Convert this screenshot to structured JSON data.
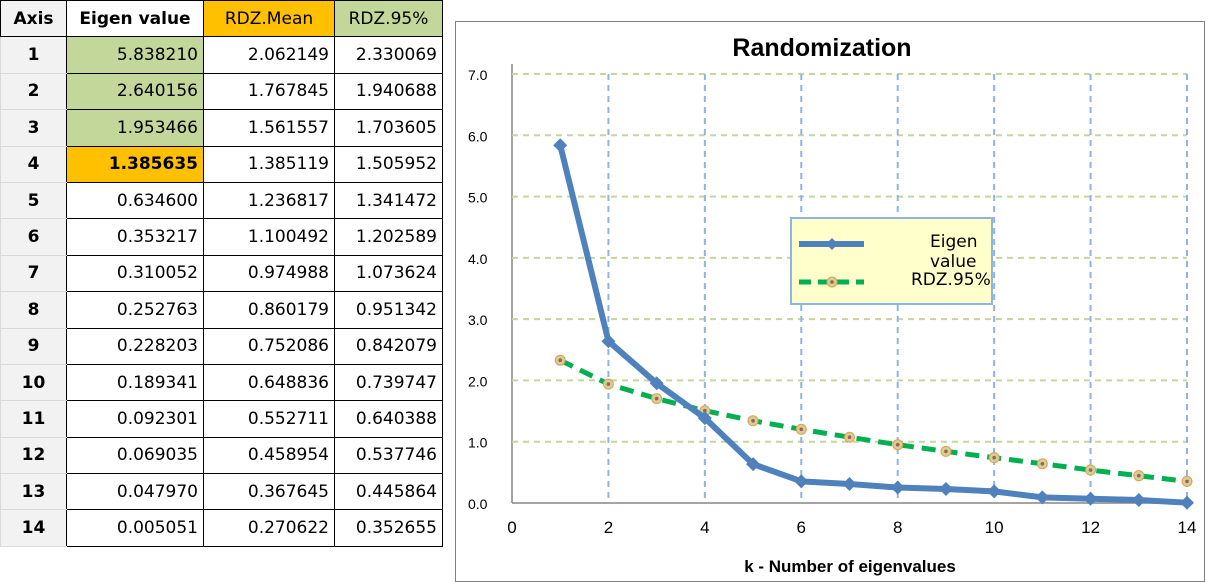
{
  "table": {
    "headers": [
      "Axis",
      "Eigen value",
      "RDZ.Mean",
      "RDZ.95%"
    ],
    "rows": [
      [
        "1",
        "5.838210",
        "2.062149",
        "2.330069"
      ],
      [
        "2",
        "2.640156",
        "1.767845",
        "1.940688"
      ],
      [
        "3",
        "1.953466",
        "1.561557",
        "1.703605"
      ],
      [
        "4",
        "1.385635",
        "1.385119",
        "1.505952"
      ],
      [
        "5",
        "0.634600",
        "1.236817",
        "1.341472"
      ],
      [
        "6",
        "0.353217",
        "1.100492",
        "1.202589"
      ],
      [
        "7",
        "0.310052",
        "0.974988",
        "1.073624"
      ],
      [
        "8",
        "0.252763",
        "0.860179",
        "0.951342"
      ],
      [
        "9",
        "0.228203",
        "0.752086",
        "0.842079"
      ],
      [
        "10",
        "0.189341",
        "0.648836",
        "0.739747"
      ],
      [
        "11",
        "0.092301",
        "0.552711",
        "0.640388"
      ],
      [
        "12",
        "0.069035",
        "0.458954",
        "0.537746"
      ],
      [
        "13",
        "0.047970",
        "0.367645",
        "0.445864"
      ],
      [
        "14",
        "0.005051",
        "0.270622",
        "0.352655"
      ]
    ]
  },
  "colors": {
    "highlight_green": "#c4d79b",
    "highlight_orange": "#ffc000",
    "eigen_line": "#4f81bd",
    "rdz_line": "#00b050",
    "rdz_marker": "#e36c09",
    "grid_h": "#c3d69b",
    "grid_v": "#8eb4e3",
    "legend_bg": "#ffffcc"
  },
  "chart_data": {
    "type": "line",
    "title": "Randomization",
    "xlabel": "k - Number of eigenvalues",
    "ylabel": "",
    "xlim": [
      0,
      14
    ],
    "ylim": [
      0,
      7
    ],
    "xticks": [
      0,
      2,
      4,
      6,
      8,
      10,
      12,
      14
    ],
    "yticks": [
      0,
      1,
      2,
      3,
      4,
      5,
      6,
      7
    ],
    "ytick_labels": [
      "0.0",
      "1.0",
      "2.0",
      "3.0",
      "4.0",
      "5.0",
      "6.0",
      "7.0"
    ],
    "grid": true,
    "legend_position": "center-right",
    "series": [
      {
        "name": "Eigen value",
        "style": "solid-diamond",
        "x": [
          1,
          2,
          3,
          4,
          5,
          6,
          7,
          8,
          9,
          10,
          11,
          12,
          13,
          14
        ],
        "y": [
          5.83821,
          2.640156,
          1.953466,
          1.385635,
          0.6346,
          0.353217,
          0.310052,
          0.252763,
          0.228203,
          0.189341,
          0.092301,
          0.069035,
          0.04797,
          0.005051
        ]
      },
      {
        "name": "RDZ.95%",
        "style": "dashed-dot",
        "x": [
          1,
          2,
          3,
          4,
          5,
          6,
          7,
          8,
          9,
          10,
          11,
          12,
          13,
          14
        ],
        "y": [
          2.330069,
          1.940688,
          1.703605,
          1.505952,
          1.341472,
          1.202589,
          1.073624,
          0.951342,
          0.842079,
          0.739747,
          0.640388,
          0.537746,
          0.445864,
          0.352655
        ]
      }
    ]
  }
}
